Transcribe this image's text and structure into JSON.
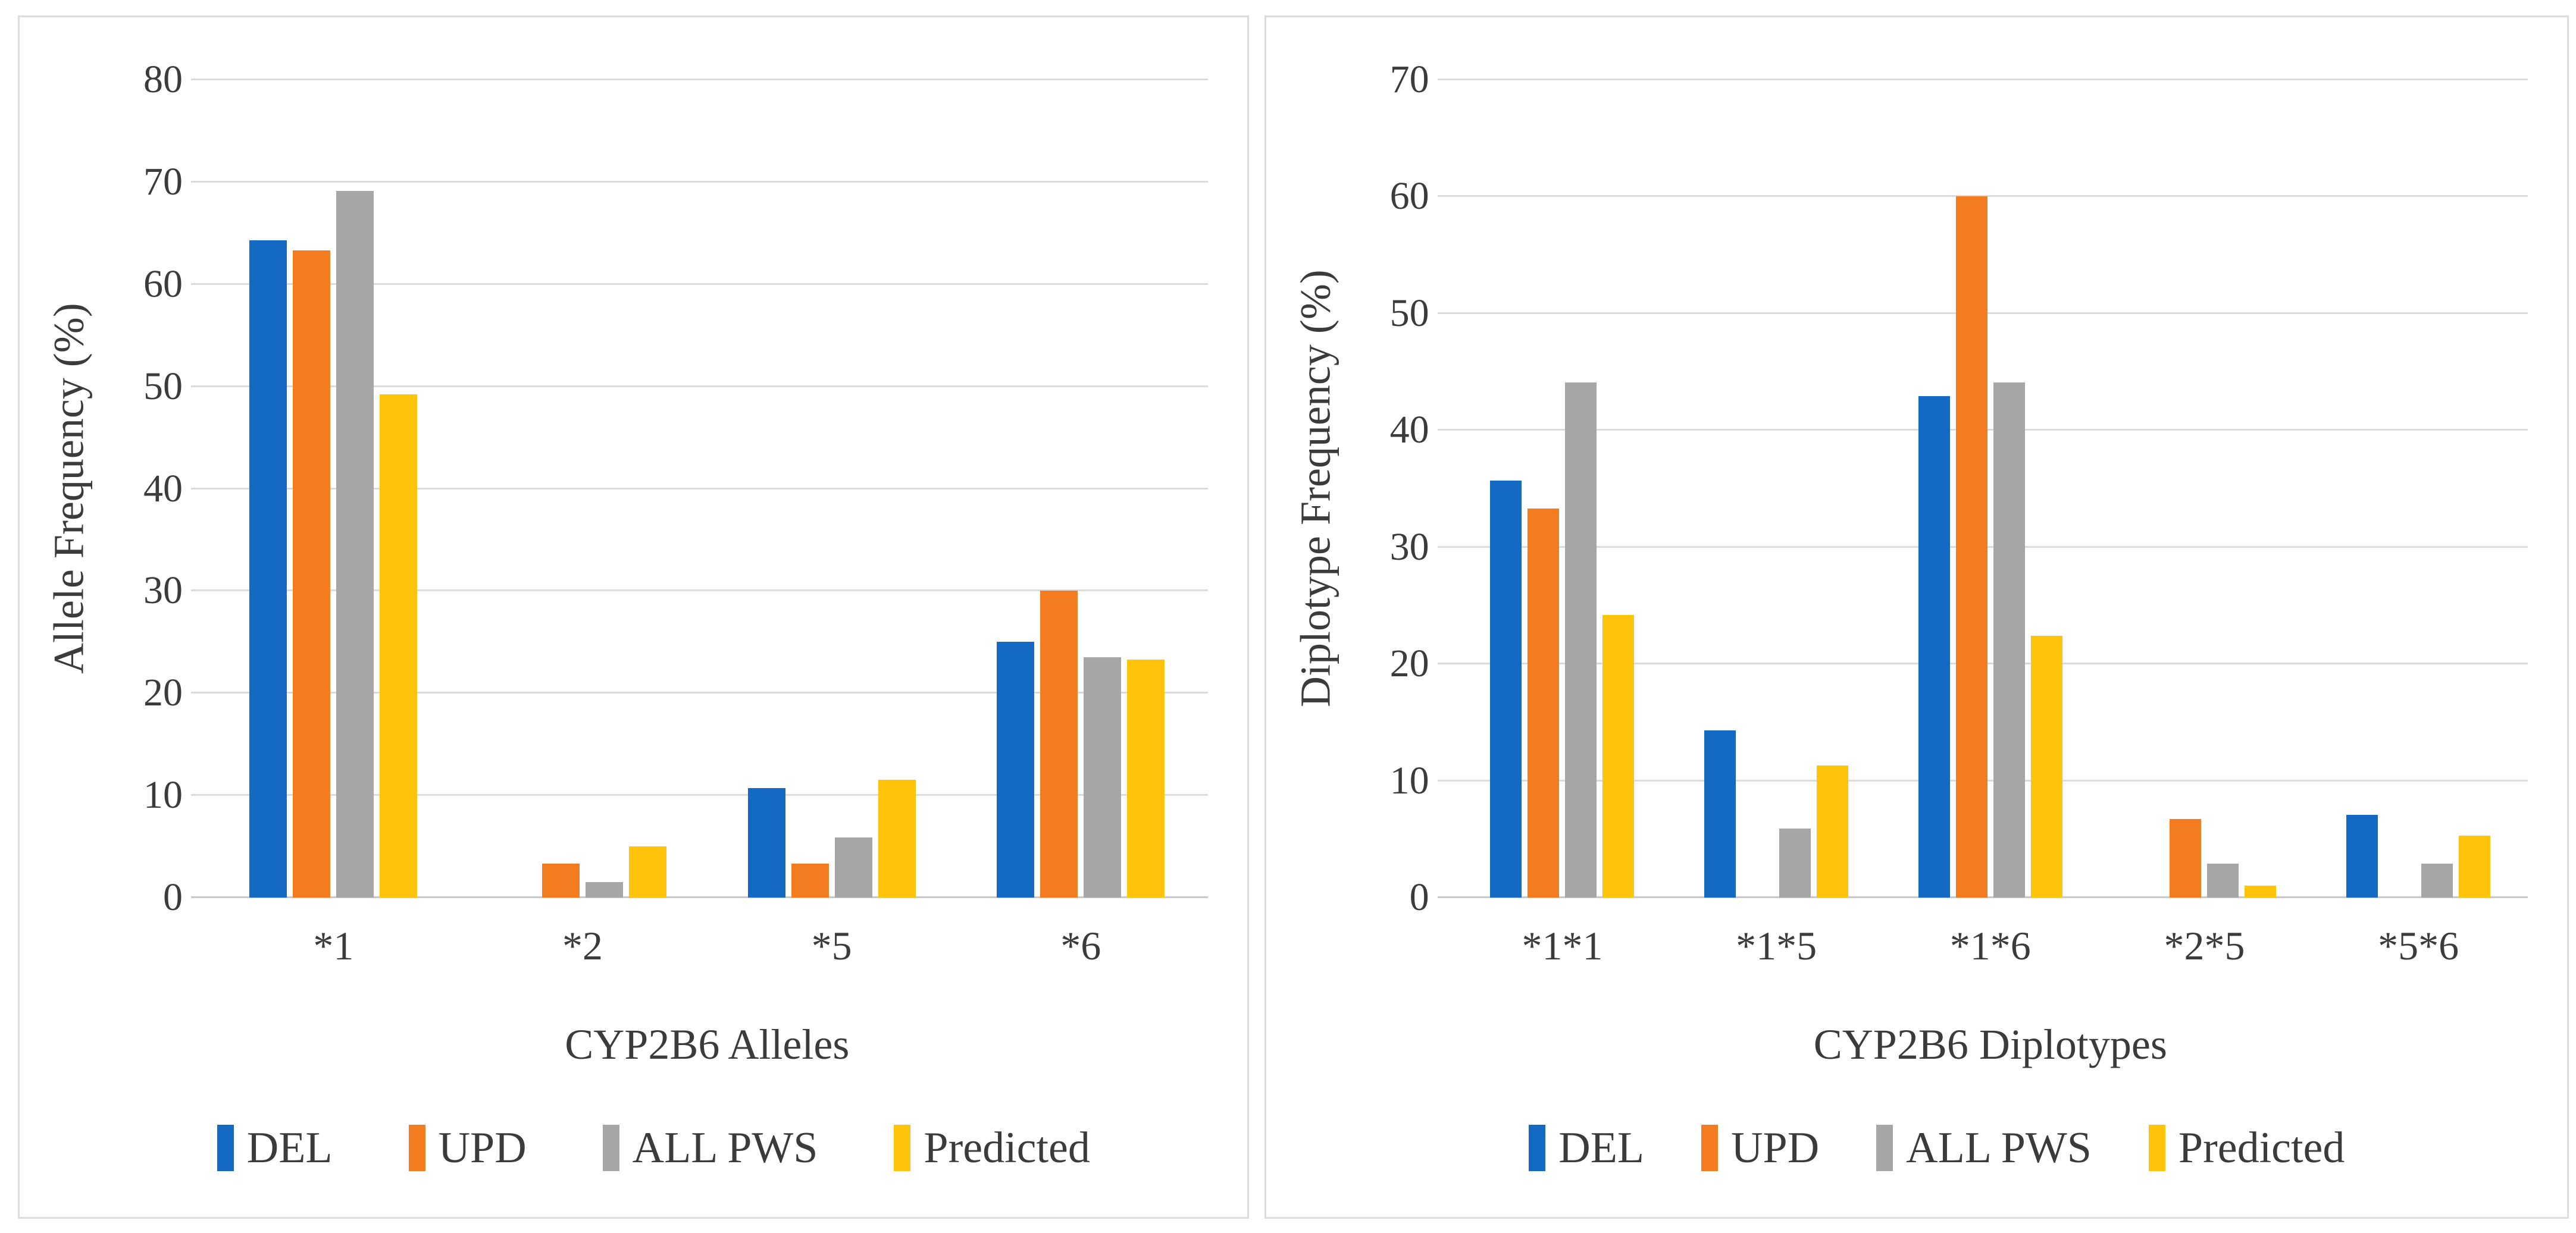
{
  "style": {
    "background": "#FFFFFF",
    "panel_border_color": "#DCDCDC",
    "gridline_color": "#DBDBDB",
    "axis_line_color": "#C9C9C9",
    "text_color": "#3B3B3B"
  },
  "series_colors": {
    "DEL": "#1469C3",
    "UPD": "#F47C20",
    "ALL PWS": "#A6A6A6",
    "Predicted": "#FFC30A"
  },
  "chart_data": [
    {
      "type": "bar",
      "title": "",
      "ylabel": "Allele Frequency (%)",
      "xlabel": "CYP2B6 Alleles",
      "ylim": [
        0,
        80
      ],
      "ytick_step": 10,
      "yticks": [
        "0",
        "10",
        "20",
        "30",
        "40",
        "50",
        "60",
        "70",
        "80"
      ],
      "grid": true,
      "legend_position": "bottom",
      "categories": [
        "*1",
        "*2",
        "*5",
        "*6"
      ],
      "series": [
        {
          "name": "DEL",
          "color": "#1469C3",
          "values": [
            64.3,
            0,
            10.7,
            25.0
          ]
        },
        {
          "name": "UPD",
          "color": "#F47C20",
          "values": [
            63.3,
            3.3,
            3.3,
            30.0
          ]
        },
        {
          "name": "ALL PWS",
          "color": "#A6A6A6",
          "values": [
            69.1,
            1.5,
            5.9,
            23.5
          ]
        },
        {
          "name": "Predicted",
          "color": "#FFC30A",
          "values": [
            49.2,
            5.0,
            11.5,
            23.3
          ]
        }
      ]
    },
    {
      "type": "bar",
      "title": "",
      "ylabel": "Diplotype Frequency (%)",
      "xlabel": "CYP2B6 Diplotypes",
      "ylim": [
        0,
        70
      ],
      "ytick_step": 10,
      "yticks": [
        "0",
        "10",
        "20",
        "30",
        "40",
        "50",
        "60",
        "70"
      ],
      "grid": true,
      "legend_position": "bottom",
      "categories": [
        "*1*1",
        "*1*5",
        "*1*6",
        "*2*5",
        "*5*6"
      ],
      "series": [
        {
          "name": "DEL",
          "color": "#1469C3",
          "values": [
            35.7,
            14.3,
            42.9,
            0,
            7.1
          ]
        },
        {
          "name": "UPD",
          "color": "#F47C20",
          "values": [
            33.3,
            0,
            60.0,
            6.7,
            0
          ]
        },
        {
          "name": "ALL PWS",
          "color": "#A6A6A6",
          "values": [
            44.1,
            5.9,
            44.1,
            2.9,
            2.9
          ]
        },
        {
          "name": "Predicted",
          "color": "#FFC30A",
          "values": [
            24.2,
            11.3,
            22.4,
            1.0,
            5.3
          ]
        }
      ]
    }
  ]
}
